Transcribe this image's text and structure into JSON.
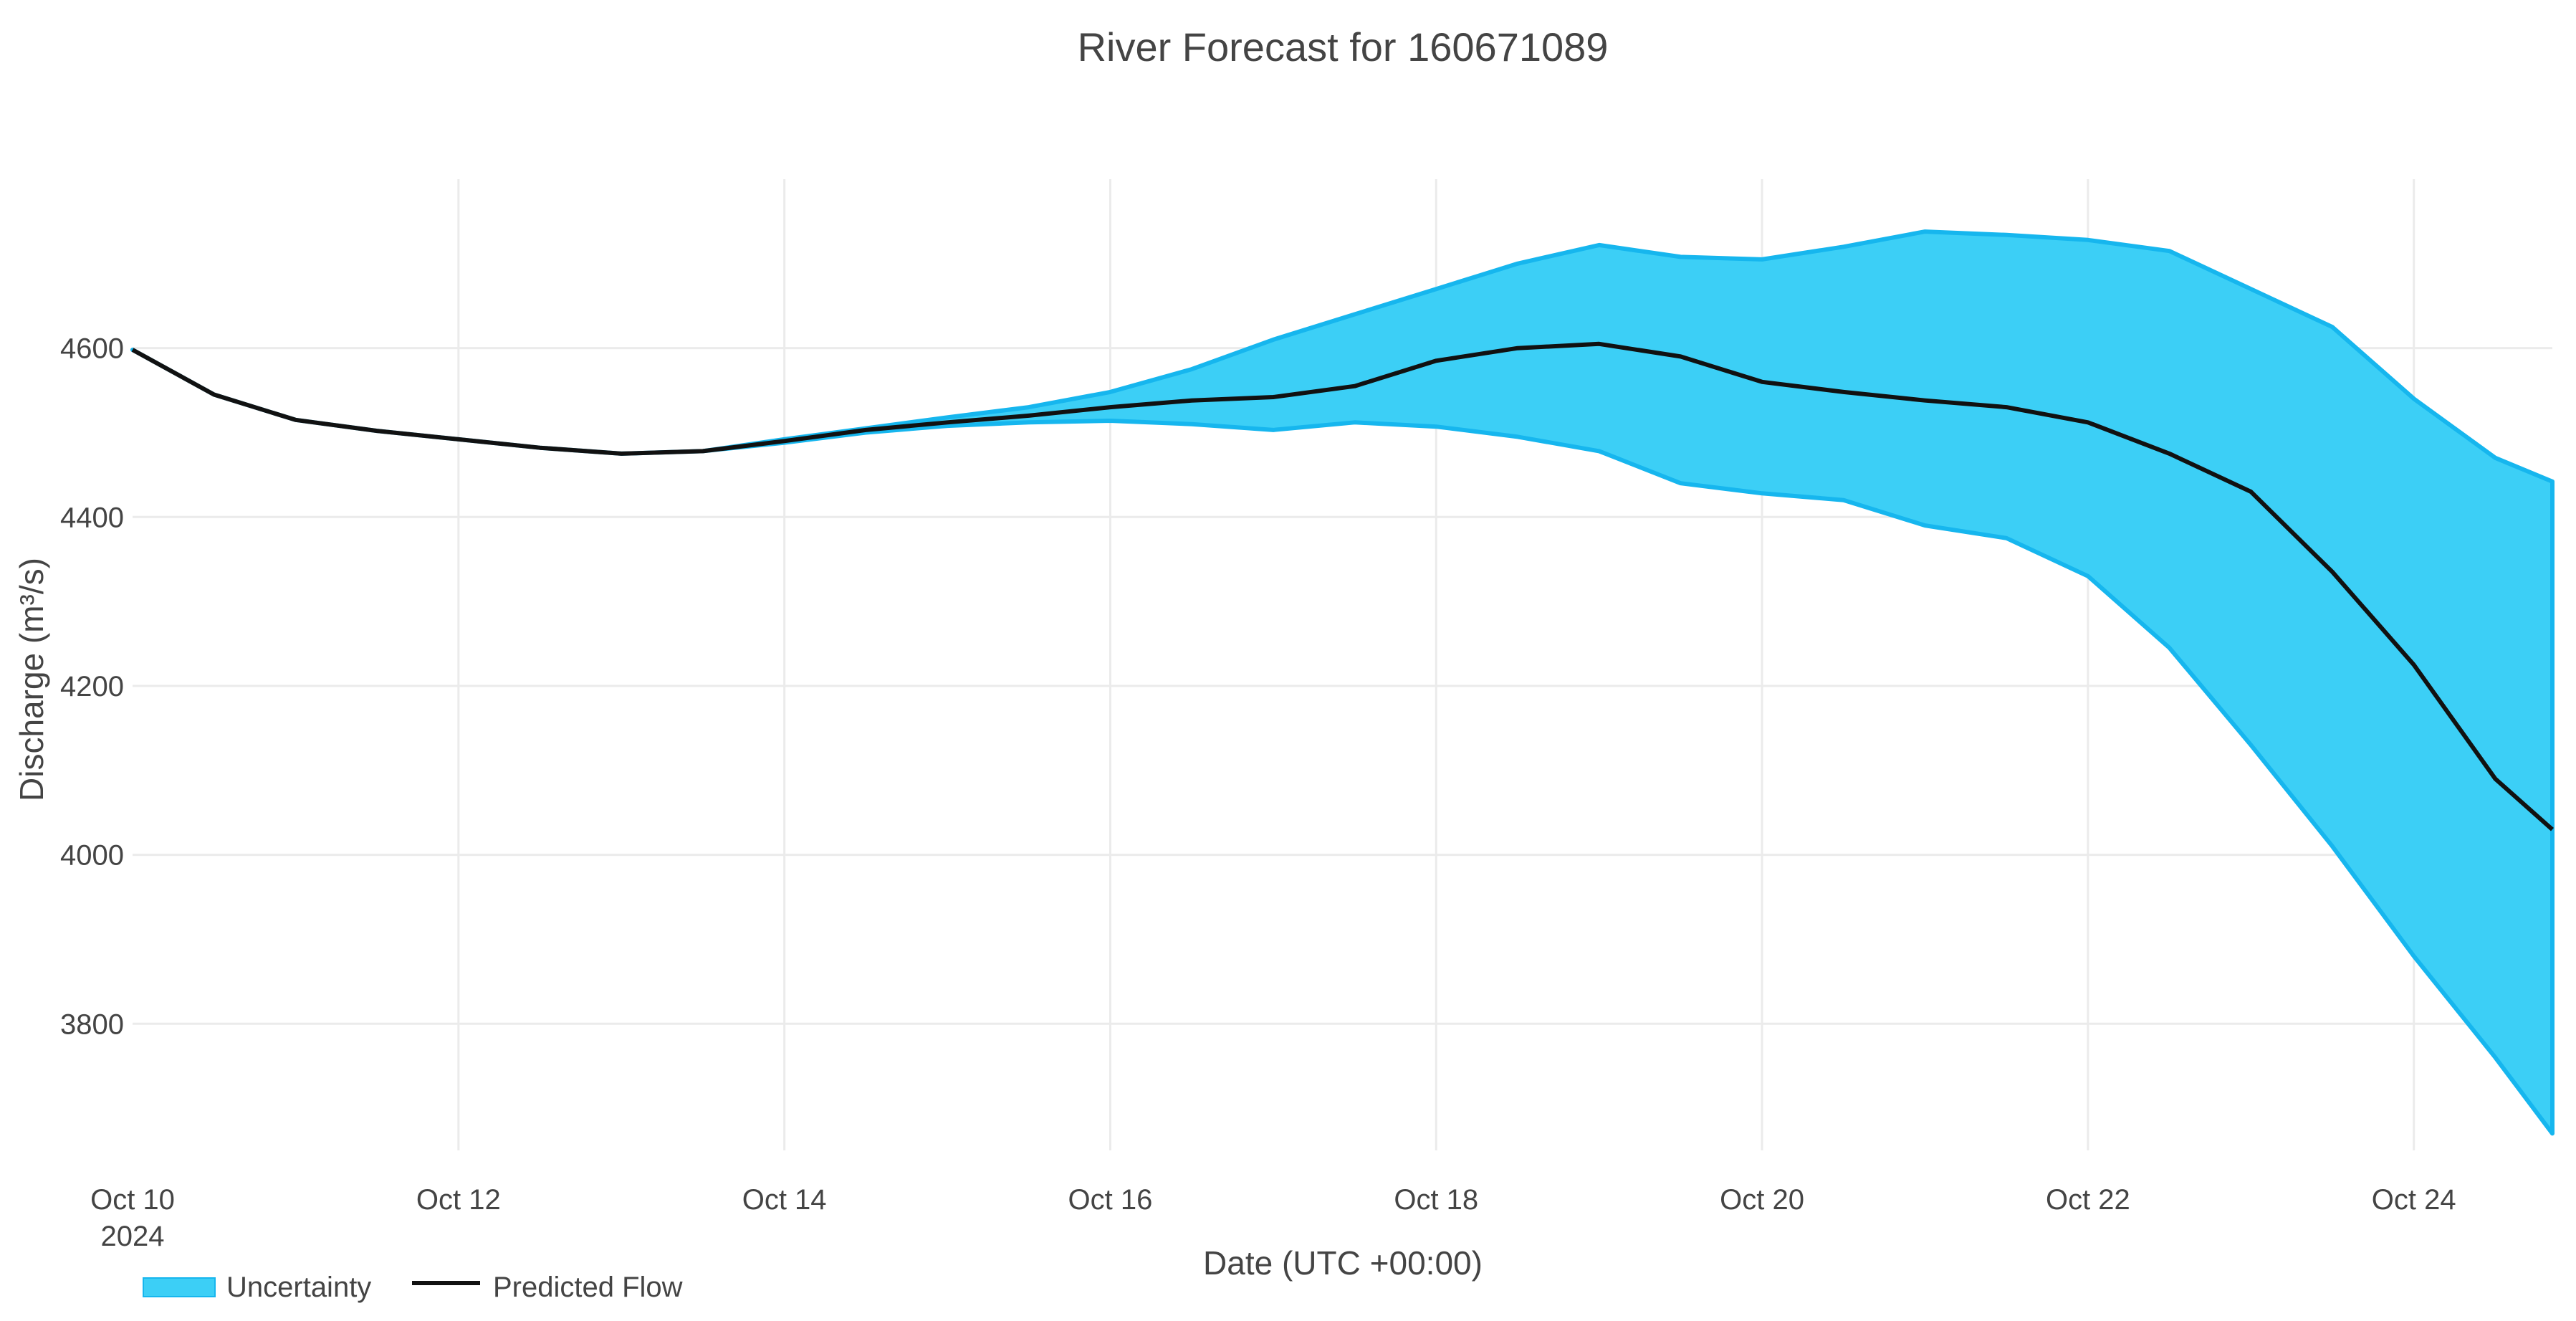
{
  "chart_data": {
    "type": "area",
    "title": "River Forecast for 160671089",
    "xlabel": "Date (UTC +00:00)",
    "ylabel": "Discharge (m³/s)",
    "ylim": [
      3650,
      4800
    ],
    "xlim_days": [
      0,
      14.85
    ],
    "yticks": [
      3800,
      4000,
      4200,
      4400,
      4600
    ],
    "xticks": [
      {
        "day": 0,
        "label": "Oct 10",
        "sublabel": "2024"
      },
      {
        "day": 2,
        "label": "Oct 12"
      },
      {
        "day": 4,
        "label": "Oct 14"
      },
      {
        "day": 6,
        "label": "Oct 16"
      },
      {
        "day": 8,
        "label": "Oct 18"
      },
      {
        "day": 10,
        "label": "Oct 20"
      },
      {
        "day": 12,
        "label": "Oct 22"
      },
      {
        "day": 14,
        "label": "Oct 24"
      }
    ],
    "x_days": [
      0,
      0.5,
      1,
      1.5,
      2,
      2.5,
      3,
      3.5,
      4,
      4.5,
      5,
      5.5,
      6,
      6.5,
      7,
      7.5,
      8,
      8.5,
      9,
      9.5,
      10,
      10.5,
      11,
      11.5,
      12,
      12.5,
      13,
      13.5,
      14,
      14.5,
      14.85
    ],
    "series": [
      {
        "name": "Uncertainty",
        "type": "band",
        "color": "#3ccff6",
        "upper": [
          4598,
          4545,
          4515,
          4502,
          4492,
          4482,
          4475,
          4478,
          4492,
          4505,
          4518,
          4530,
          4548,
          4575,
          4610,
          4640,
          4670,
          4700,
          4722,
          4708,
          4705,
          4720,
          4738,
          4734,
          4728,
          4715,
          4670,
          4625,
          4540,
          4470,
          4442
        ],
        "lower": [
          4598,
          4545,
          4515,
          4502,
          4492,
          4482,
          4475,
          4478,
          4488,
          4500,
          4508,
          4512,
          4514,
          4510,
          4503,
          4512,
          4507,
          4495,
          4478,
          4440,
          4428,
          4420,
          4390,
          4375,
          4330,
          4245,
          4130,
          4010,
          3880,
          3760,
          3670
        ]
      },
      {
        "name": "Predicted Flow",
        "type": "line",
        "color": "#111111",
        "values": [
          4598,
          4545,
          4515,
          4502,
          4492,
          4482,
          4475,
          4478,
          4490,
          4503,
          4512,
          4520,
          4530,
          4538,
          4542,
          4555,
          4585,
          4600,
          4605,
          4590,
          4560,
          4548,
          4538,
          4530,
          4512,
          4475,
          4430,
          4335,
          4225,
          4090,
          4030
        ]
      }
    ],
    "legend": {
      "placement": "bottom-left",
      "items": [
        "Uncertainty",
        "Predicted Flow"
      ]
    },
    "grid": true
  }
}
